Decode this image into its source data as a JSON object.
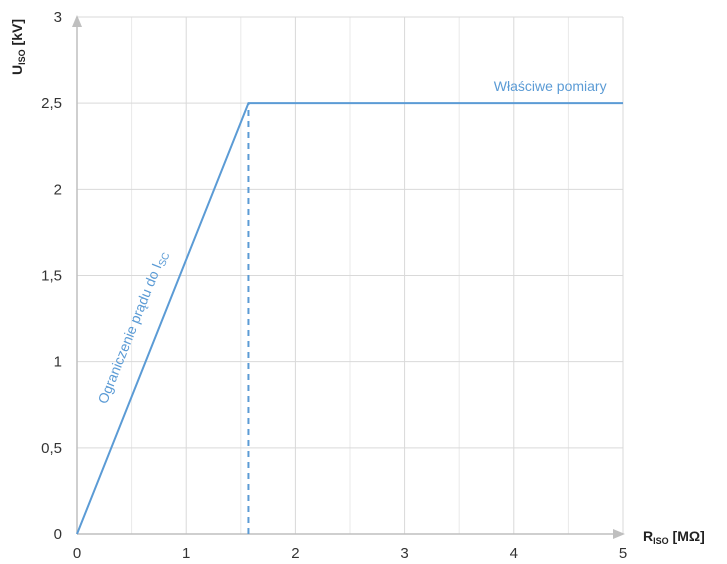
{
  "chart_data": {
    "type": "line",
    "xlabel": {
      "main": "R",
      "sub": "ISO",
      "unit": " [MΩ]"
    },
    "ylabel": {
      "main": "U",
      "sub": "ISO",
      "unit": " [kV]"
    },
    "xlim": [
      0,
      5
    ],
    "ylim": [
      0,
      3
    ],
    "x_ticks": [
      0,
      1,
      2,
      3,
      4,
      5
    ],
    "x_tick_labels": [
      "0",
      "1",
      "2",
      "3",
      "4",
      "5"
    ],
    "y_ticks": [
      0,
      0.5,
      1,
      1.5,
      2,
      2.5,
      3
    ],
    "y_tick_labels": [
      "0",
      "0,5",
      "1",
      "1,5",
      "2",
      "2,5",
      "3"
    ],
    "grid": true,
    "series": [
      {
        "points": [
          [
            0,
            0
          ],
          [
            1.57,
            2.5
          ],
          [
            5,
            2.5
          ]
        ],
        "style": "solid"
      }
    ],
    "reference_lines": [
      {
        "points": [
          [
            1.57,
            0
          ],
          [
            1.57,
            2.5
          ]
        ],
        "style": "dashed"
      }
    ],
    "annotations": [
      {
        "text": "Właściwe pomiary",
        "x": 4.85,
        "y": 2.5
      },
      {
        "text_main": "Ograniczenie prądu do I",
        "text_sub": "SC",
        "x": 0.27,
        "y": 0.75
      }
    ],
    "line_color": "#5b9bd5",
    "grid_color": "#d9d9d9",
    "axis_color": "#bfbfbf"
  }
}
